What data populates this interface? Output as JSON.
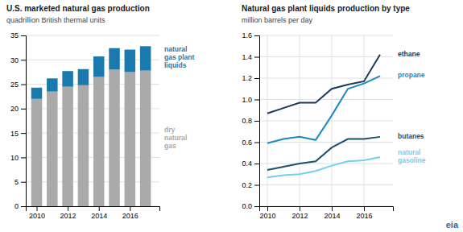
{
  "chart_data": [
    {
      "type": "bar",
      "stacked": true,
      "title": "U.S. marketed natural gas production",
      "subtitle": "quadrillion British thermal units",
      "x": [
        2010,
        2011,
        2012,
        2013,
        2014,
        2015,
        2016,
        2017
      ],
      "xlim": [
        2009.3,
        2017.9
      ],
      "xticks": [
        2010,
        2012,
        2014,
        2016
      ],
      "ylim": [
        0,
        35
      ],
      "yticks": [
        0,
        5,
        10,
        15,
        20,
        25,
        30,
        35
      ],
      "grid": "y",
      "series": [
        {
          "name": "dry\nnatural\ngas",
          "color": "#aaaaaa",
          "values": [
            22.0,
            23.5,
            24.5,
            24.8,
            26.5,
            28.0,
            27.5,
            27.8
          ]
        },
        {
          "name": "natural\ngas plant\nliquids",
          "color": "#1a7aad",
          "values": [
            2.3,
            2.7,
            3.2,
            3.3,
            4.2,
            4.4,
            4.6,
            5.0
          ]
        }
      ]
    },
    {
      "type": "line",
      "title": "Natural gas plant liquids production by type",
      "subtitle": "million barrels per day",
      "x": [
        2010,
        2011,
        2012,
        2013,
        2014,
        2015,
        2016,
        2017
      ],
      "xlim": [
        2009.5,
        2017.8
      ],
      "xticks": [
        2010,
        2012,
        2014,
        2016
      ],
      "ylim": [
        0.0,
        1.6
      ],
      "yticks": [
        {
          "value": 0.0,
          "label": "0.0"
        },
        0.2,
        0.4,
        0.6,
        0.8,
        {
          "value": 1.0,
          "label": "1.0"
        },
        1.2,
        1.4,
        1.6
      ],
      "grid": true,
      "series": [
        {
          "name": "ethane",
          "color": "#1a3a5c",
          "values": [
            0.87,
            0.92,
            0.97,
            0.97,
            1.1,
            1.14,
            1.17,
            1.42
          ]
        },
        {
          "name": "propane",
          "color": "#1a8abf",
          "values": [
            0.59,
            0.63,
            0.65,
            0.62,
            0.85,
            1.1,
            1.15,
            1.22
          ]
        },
        {
          "name": "butanes",
          "color": "#1a5070",
          "values": [
            0.34,
            0.37,
            0.4,
            0.42,
            0.55,
            0.63,
            0.63,
            0.65
          ]
        },
        {
          "name": "natural\ngasoline",
          "color": "#70d0f0",
          "values": [
            0.27,
            0.29,
            0.3,
            0.33,
            0.38,
            0.42,
            0.43,
            0.46
          ]
        }
      ],
      "annotations": [
        {
          "text": "eia",
          "color": "#336699"
        }
      ]
    }
  ]
}
